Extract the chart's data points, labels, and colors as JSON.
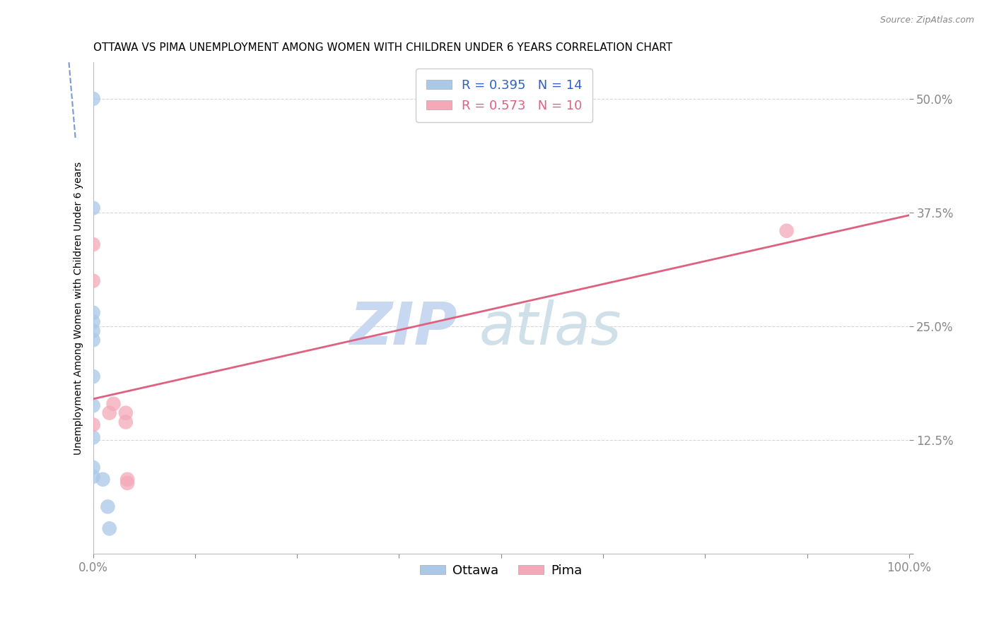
{
  "title": "OTTAWA VS PIMA UNEMPLOYMENT AMONG WOMEN WITH CHILDREN UNDER 6 YEARS CORRELATION CHART",
  "source": "Source: ZipAtlas.com",
  "ylabel": "Unemployment Among Women with Children Under 6 years",
  "xlim": [
    0.0,
    1.0
  ],
  "ylim": [
    0.0,
    0.54
  ],
  "xticks": [
    0.0,
    0.125,
    0.25,
    0.375,
    0.5,
    0.625,
    0.75,
    0.875,
    1.0
  ],
  "xticklabels": [
    "0.0%",
    "",
    "",
    "",
    "",
    "",
    "",
    "",
    "100.0%"
  ],
  "yticks": [
    0.0,
    0.125,
    0.25,
    0.375,
    0.5
  ],
  "yticklabels": [
    "",
    "12.5%",
    "25.0%",
    "37.5%",
    "50.0%"
  ],
  "ottawa_x": [
    0.0,
    0.0,
    0.0,
    0.0,
    0.0,
    0.0,
    0.0,
    0.0,
    0.0,
    0.0,
    0.0,
    0.012,
    0.018,
    0.02
  ],
  "ottawa_y": [
    0.5,
    0.38,
    0.265,
    0.255,
    0.245,
    0.235,
    0.195,
    0.163,
    0.128,
    0.095,
    0.085,
    0.082,
    0.052,
    0.028
  ],
  "pima_x": [
    0.0,
    0.0,
    0.02,
    0.025,
    0.04,
    0.04,
    0.042,
    0.042,
    0.85,
    0.0
  ],
  "pima_y": [
    0.34,
    0.142,
    0.155,
    0.165,
    0.145,
    0.155,
    0.082,
    0.078,
    0.355,
    0.3
  ],
  "ottawa_R": 0.395,
  "ottawa_N": 14,
  "pima_R": 0.573,
  "pima_N": 10,
  "ottawa_color": "#aac8e8",
  "pima_color": "#f4a8b8",
  "ottawa_line_color": "#3060c0",
  "pima_line_color": "#e06080",
  "background_color": "#ffffff",
  "grid_color": "#cccccc",
  "tick_color": "#4472c4",
  "title_fontsize": 11,
  "axis_label_fontsize": 10,
  "tick_fontsize": 12,
  "legend_fontsize": 13,
  "watermark_zip_color": "#c8d8f0",
  "watermark_atlas_color": "#d0e0e8",
  "watermark_fontsize": 60
}
